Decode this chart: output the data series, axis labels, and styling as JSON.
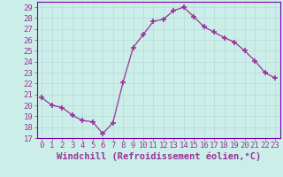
{
  "x": [
    0,
    1,
    2,
    3,
    4,
    5,
    6,
    7,
    8,
    9,
    10,
    11,
    12,
    13,
    14,
    15,
    16,
    17,
    18,
    19,
    20,
    21,
    22,
    23
  ],
  "y": [
    20.7,
    20.0,
    19.8,
    19.1,
    18.6,
    18.5,
    17.4,
    18.4,
    22.1,
    25.3,
    26.5,
    27.7,
    27.9,
    28.7,
    29.0,
    28.1,
    27.2,
    26.7,
    26.2,
    25.8,
    25.0,
    24.1,
    23.0,
    22.5
  ],
  "line_color": "#993399",
  "marker": "+",
  "xlabel": "Windchill (Refroidissement éolien,°C)",
  "xlim": [
    -0.5,
    23.5
  ],
  "ylim": [
    17,
    29.5
  ],
  "yticks": [
    17,
    18,
    19,
    20,
    21,
    22,
    23,
    24,
    25,
    26,
    27,
    28,
    29
  ],
  "xtick_labels": [
    "0",
    "1",
    "2",
    "3",
    "4",
    "5",
    "6",
    "7",
    "8",
    "9",
    "10",
    "11",
    "12",
    "13",
    "14",
    "15",
    "16",
    "17",
    "18",
    "19",
    "20",
    "21",
    "22",
    "23"
  ],
  "bg_color": "#cceee8",
  "grid_color": "#aacccc",
  "line_border_color": "#7700aa",
  "tick_color": "#993399",
  "label_color": "#993399",
  "font_size_xlabel": 7.5,
  "font_size_ticks": 6.5
}
